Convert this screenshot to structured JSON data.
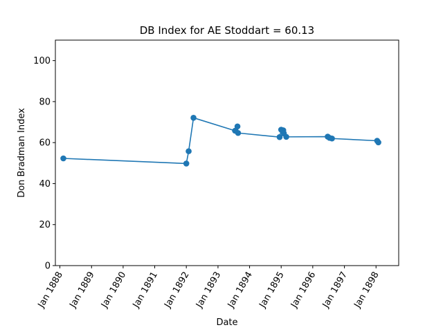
{
  "chart_data": {
    "type": "line",
    "title": "DB Index for AE Stoddart = 60.13",
    "xlabel": "Date",
    "ylabel": "Don Bradman Index",
    "ylim": [
      0,
      110
    ],
    "yticks": [
      0,
      20,
      40,
      60,
      80,
      100
    ],
    "xlim": [
      "1887-11-10",
      "1898-09-20"
    ],
    "xticks": [
      {
        "date": "1888-01-01",
        "label": "Jan 1888"
      },
      {
        "date": "1889-01-01",
        "label": "Jan 1889"
      },
      {
        "date": "1890-01-01",
        "label": "Jan 1890"
      },
      {
        "date": "1891-01-01",
        "label": "Jan 1891"
      },
      {
        "date": "1892-01-01",
        "label": "Jan 1892"
      },
      {
        "date": "1893-01-01",
        "label": "Jan 1893"
      },
      {
        "date": "1894-01-01",
        "label": "Jan 1894"
      },
      {
        "date": "1895-01-01",
        "label": "Jan 1895"
      },
      {
        "date": "1896-01-01",
        "label": "Jan 1896"
      },
      {
        "date": "1897-01-01",
        "label": "Jan 1897"
      },
      {
        "date": "1898-01-01",
        "label": "Jan 1898"
      }
    ],
    "grid": false,
    "series": [
      {
        "color": "#1f77b4",
        "marker": "circle",
        "points": [
          {
            "x": "1888-02-10",
            "y": 52.3
          },
          {
            "x": "1892-01-01",
            "y": 49.8
          },
          {
            "x": "1892-01-28",
            "y": 55.8
          },
          {
            "x": "1892-03-24",
            "y": 72.1
          },
          {
            "x": "1893-07-17",
            "y": 65.8
          },
          {
            "x": "1893-08-14",
            "y": 67.9
          },
          {
            "x": "1893-08-21",
            "y": 64.7
          },
          {
            "x": "1894-12-14",
            "y": 62.7
          },
          {
            "x": "1895-01-01",
            "y": 66.3
          },
          {
            "x": "1895-01-25",
            "y": 66.0
          },
          {
            "x": "1895-02-01",
            "y": 64.5
          },
          {
            "x": "1895-03-01",
            "y": 62.8
          },
          {
            "x": "1896-06-22",
            "y": 62.9
          },
          {
            "x": "1896-07-13",
            "y": 62.3
          },
          {
            "x": "1896-08-10",
            "y": 62.0
          },
          {
            "x": "1898-01-14",
            "y": 60.9
          },
          {
            "x": "1898-01-28",
            "y": 60.1
          }
        ]
      }
    ]
  }
}
